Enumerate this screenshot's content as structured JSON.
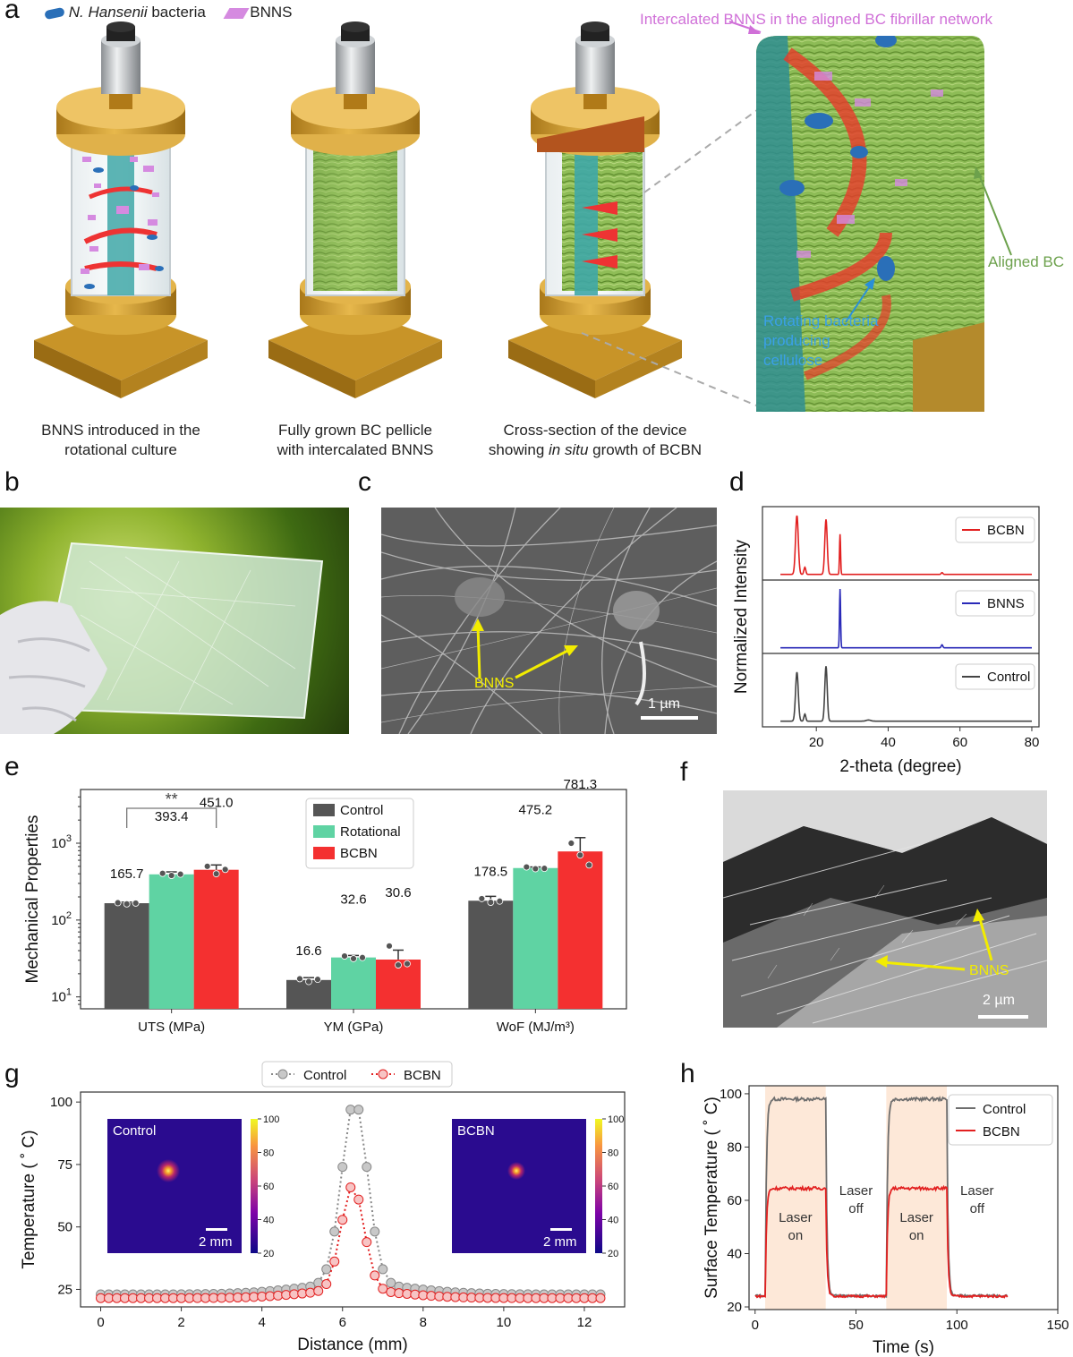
{
  "panels": {
    "a": {
      "letter": "a",
      "legend": {
        "bacteria": "N. Hansenii",
        "bacteria_suffix": " bacteria",
        "bnns": "BNNS"
      },
      "captions": [
        {
          "line1": "BNNS introduced in the",
          "line2": "rotational culture"
        },
        {
          "line1": "Fully grown BC pellicle",
          "line2": "with intercalated BNNS"
        },
        {
          "line1": "Cross-section of the device",
          "line2a": "showing ",
          "line2b": "in situ",
          "line2c": " growth of BCBN"
        }
      ],
      "zoom_labels": {
        "top": "Intercalated BNNS in the aligned BC fibrillar network",
        "aligned": "Aligned BC",
        "bacteria": [
          "Rotating bacteria",
          "producing",
          "cellulose"
        ]
      }
    },
    "b": {
      "letter": "b"
    },
    "c": {
      "letter": "c",
      "label": "BNNS",
      "scale": "1 µm"
    },
    "d": {
      "letter": "d"
    },
    "e": {
      "letter": "e"
    },
    "f": {
      "letter": "f",
      "label": "BNNS",
      "scale": "2 µm"
    },
    "g": {
      "letter": "g",
      "inset_labels": [
        "Control",
        "BCBN"
      ],
      "inset_scale": "2 mm",
      "colorbar_ticks": [
        "100",
        "80",
        "60",
        "40",
        "20"
      ]
    },
    "h": {
      "letter": "h",
      "annotations": [
        [
          "Laser",
          "on"
        ],
        [
          "Laser",
          "off"
        ],
        [
          "Laser",
          "on"
        ],
        [
          "Laser",
          "off"
        ]
      ]
    }
  },
  "colors": {
    "control": "#555555",
    "rotational": "#5fd3a3",
    "bcbn": "#f43030",
    "bnns_line": "#2a2ab8",
    "bnns_purple": "#d58ae0",
    "bacteria_blue": "#2a6fb8",
    "arrow_yellow": "#f2ec00",
    "laser_band": "#fde8d8"
  },
  "chart_data": [
    {
      "id": "d",
      "type": "line",
      "xlabel": "2-theta (degree)",
      "ylabel": "Normalized Intensity",
      "xlim": [
        5,
        82
      ],
      "xticks": [
        20,
        40,
        60,
        80
      ],
      "series": [
        {
          "name": "BCBN",
          "color": "#e22020",
          "peaks": [
            [
              14.6,
              1.0,
              0.9
            ],
            [
              16.8,
              0.12,
              0.6
            ],
            [
              22.7,
              0.93,
              0.8
            ],
            [
              26.6,
              0.68,
              0.35
            ],
            [
              55.0,
              0.03,
              0.5
            ]
          ]
        },
        {
          "name": "BNNS",
          "color": "#2a2ab8",
          "peaks": [
            [
              26.6,
              1.0,
              0.35
            ],
            [
              55.0,
              0.05,
              0.5
            ]
          ]
        },
        {
          "name": "Control",
          "color": "#444444",
          "peaks": [
            [
              14.6,
              0.83,
              0.9
            ],
            [
              16.8,
              0.12,
              0.6
            ],
            [
              22.7,
              0.93,
              0.8
            ],
            [
              34.5,
              0.02,
              1.5
            ]
          ]
        }
      ]
    },
    {
      "id": "e",
      "type": "bar",
      "ylabel": "Mechanical Properties",
      "yscale": "log",
      "ylim": [
        7,
        5000
      ],
      "yticks": [
        {
          "v": 10,
          "t": "10",
          "s": "1"
        },
        {
          "v": 100,
          "t": "10",
          "s": "2"
        },
        {
          "v": 1000,
          "t": "10",
          "s": "3"
        }
      ],
      "categories": [
        "UTS (MPa)",
        "YM (GPa)",
        "WoF (MJ/m³)"
      ],
      "series": [
        {
          "name": "Control",
          "color": "#555555",
          "values": [
            165.7,
            16.6,
            178.5
          ],
          "labels": [
            "165.7",
            "16.6",
            "178.5"
          ],
          "err": [
            5,
            1.2,
            25
          ],
          "points": [
            [
              168,
              162,
              166
            ],
            [
              17.2,
              15.8,
              16.9
            ],
            [
              190,
              170,
              176
            ]
          ]
        },
        {
          "name": "Rotational",
          "color": "#5fd3a3",
          "values": [
            393.4,
            32.6,
            475.2
          ],
          "labels": [
            "393.4",
            "32.6",
            "475.2"
          ],
          "err": [
            30,
            2,
            15
          ],
          "points": [
            [
              405,
              380,
              395
            ],
            [
              34,
              31.5,
              32.5
            ],
            [
              490,
              465,
              470
            ]
          ]
        },
        {
          "name": "BCBN",
          "color": "#f43030",
          "values": [
            451.0,
            30.6,
            781.3
          ],
          "labels": [
            "451.0",
            "30.6",
            "781.3"
          ],
          "err": [
            70,
            10,
            400
          ],
          "points": [
            [
              500,
              400,
              455
            ],
            [
              46,
              26,
              27
            ],
            [
              1000,
              700,
              520
            ]
          ]
        }
      ],
      "significance": "**"
    },
    {
      "id": "g",
      "type": "scatter",
      "xlabel": "Distance (mm)",
      "ylabel": "Temperature ( ˚ C)",
      "xlim": [
        -0.5,
        13.0
      ],
      "ylim": [
        18,
        104
      ],
      "xticks": [
        0,
        2,
        4,
        6,
        8,
        10,
        12
      ],
      "yticks": [
        25,
        50,
        75,
        100
      ],
      "x_start": 0,
      "x_step": 0.2,
      "count": 63,
      "series": [
        {
          "name": "Control",
          "color": "#888888",
          "fill": "#c8c8c8",
          "base": 23,
          "peak": 100.5,
          "center": 6.3,
          "width": 0.45,
          "tail_width": 2.0,
          "tail_amp": 4
        },
        {
          "name": "BCBN",
          "color": "#e22020",
          "fill": "#f7c4c4",
          "base": 21.5,
          "peak": 66.5,
          "center": 6.25,
          "width": 0.4,
          "tail_width": 1.8,
          "tail_amp": 3
        }
      ]
    },
    {
      "id": "h",
      "type": "line",
      "xlabel": "Time (s)",
      "ylabel": "Surface Temperature ( ˚ C)",
      "xlim": [
        -3,
        150
      ],
      "ylim": [
        19,
        103
      ],
      "xticks": [
        0,
        50,
        100,
        150
      ],
      "yticks": [
        20,
        40,
        60,
        80,
        100
      ],
      "laser_on": [
        [
          5,
          35
        ],
        [
          65,
          95
        ]
      ],
      "series": [
        {
          "name": "Control",
          "color": "#6e6e6e",
          "low": 24.2,
          "high": 98
        },
        {
          "name": "BCBN",
          "color": "#e22020",
          "low": 24.0,
          "high": 64.5
        }
      ]
    }
  ]
}
